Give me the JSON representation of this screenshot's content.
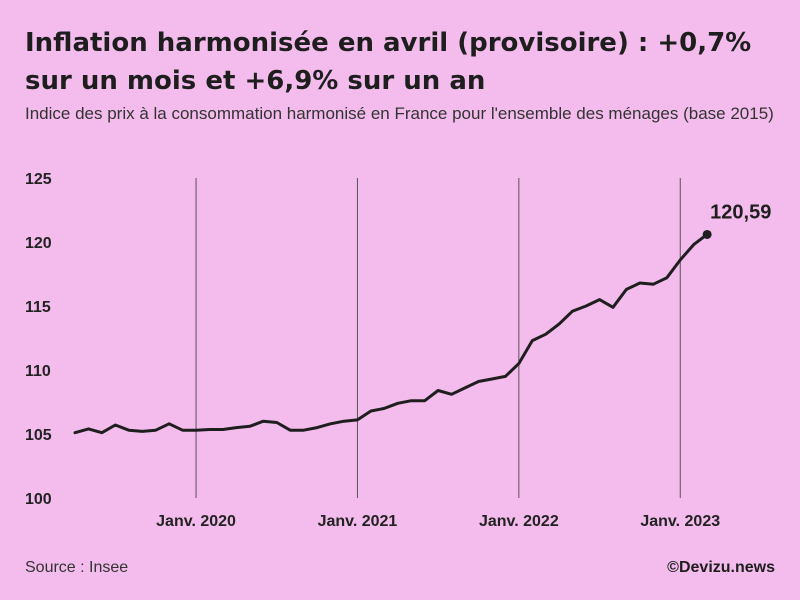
{
  "title": "Inflation harmonisée en avril (provisoire) : +0,7% sur un mois et +6,9% sur un an",
  "subtitle": "Indice des prix à la consommation harmonisé en France pour l'ensemble des ménages (base 2015)",
  "source": "Source : Insee",
  "credit": "©Devizu.news",
  "colors": {
    "background": "#f3bced",
    "line": "#1e1e1e",
    "gridline": "#555555"
  },
  "chart_data": {
    "type": "line",
    "title": "Inflation harmonisée en avril (provisoire) : +0,7% sur un mois et +6,9% sur un an",
    "subtitle": "Indice des prix à la consommation harmonisé en France pour l'ensemble des ménages (base 2015)",
    "x_start": "2019-04",
    "x_tick_labels": [
      "Janv. 2020",
      "Janv. 2021",
      "Janv. 2022",
      "Janv. 2023"
    ],
    "x_tick_dates": [
      "2020-01",
      "2021-01",
      "2022-01",
      "2023-01"
    ],
    "y_ticks": [
      100,
      105,
      110,
      115,
      120,
      125
    ],
    "ylim": [
      100,
      125
    ],
    "grid": "vertical lines at January of each year",
    "end_label": "120,59",
    "series": [
      {
        "values": [
          105.1,
          105.4,
          105.1,
          105.7,
          105.3,
          105.2,
          105.3,
          105.8,
          105.3,
          105.3,
          105.35,
          105.35,
          105.5,
          105.6,
          106.0,
          105.9,
          105.3,
          105.3,
          105.5,
          105.8,
          106.0,
          106.1,
          106.8,
          107.0,
          107.4,
          107.6,
          107.6,
          108.4,
          108.1,
          108.6,
          109.1,
          109.3,
          109.5,
          110.5,
          112.3,
          112.8,
          113.6,
          114.6,
          115.0,
          115.5,
          114.9,
          116.3,
          116.8,
          116.7,
          117.2,
          118.6,
          119.8,
          120.59
        ]
      }
    ]
  }
}
